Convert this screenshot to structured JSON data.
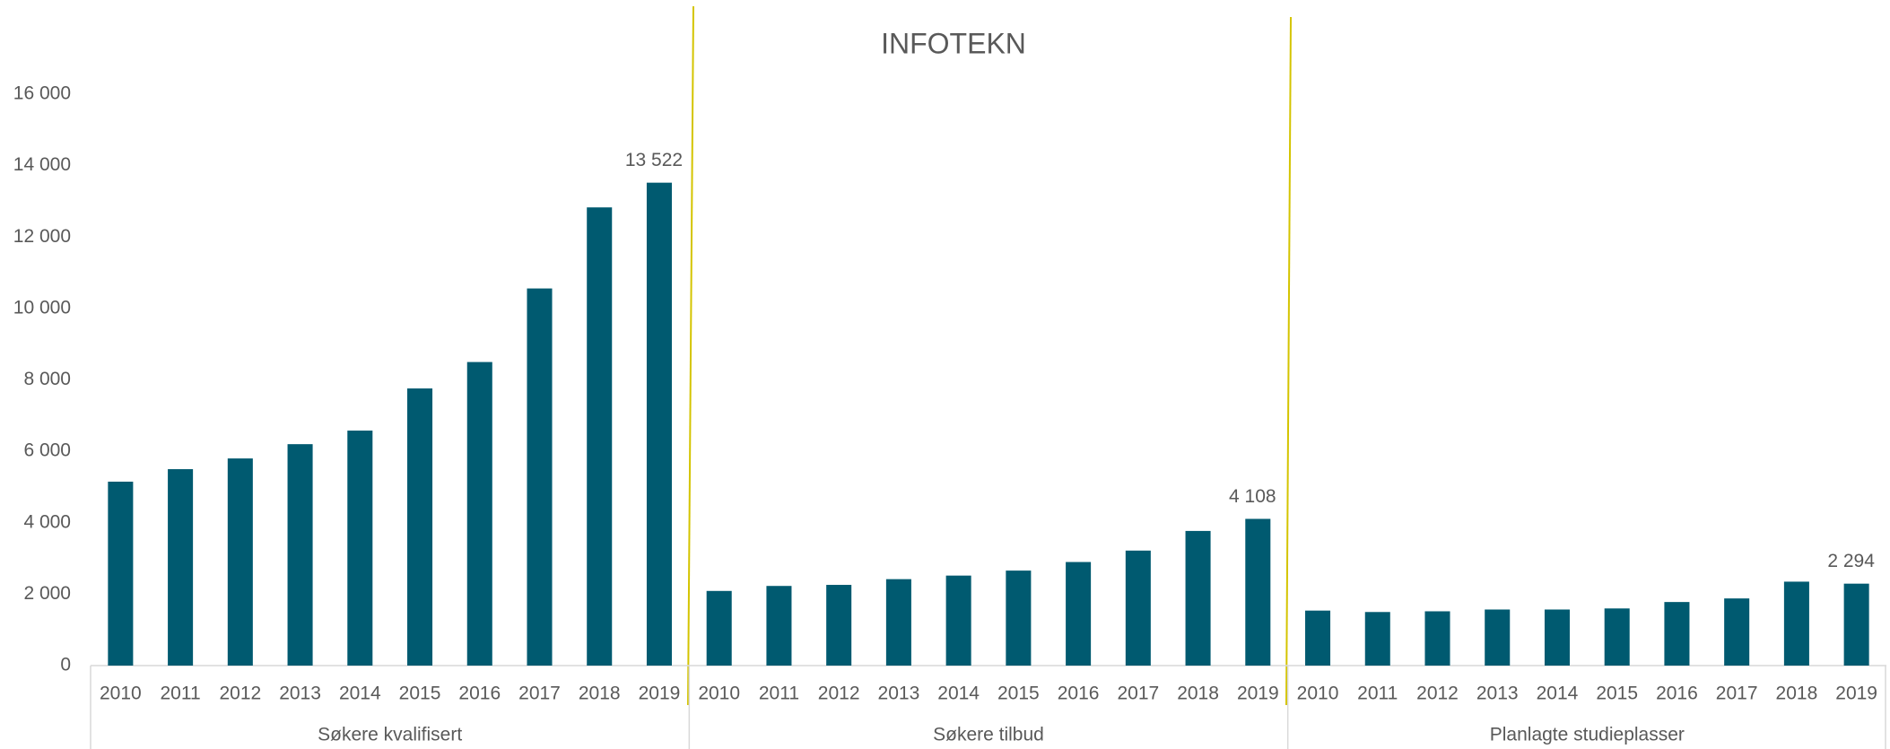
{
  "chart_data": {
    "type": "bar",
    "title": "INFOTEKN",
    "color": "#005a70",
    "ylim": [
      0,
      16000
    ],
    "yticks": [
      0,
      {
        "value": 2000,
        "label": "2 000"
      },
      {
        "value": 4000,
        "label": "4 000"
      },
      {
        "value": 6000,
        "label": "6 000"
      },
      {
        "value": 8000,
        "label": "8 000"
      },
      {
        "value": 10000,
        "label": "10 000"
      },
      {
        "value": 12000,
        "label": "12 000"
      },
      {
        "value": 14000,
        "label": "14 000"
      },
      {
        "value": 16000,
        "label": "16 000"
      }
    ],
    "groups": [
      {
        "name": "Søkere kvalifisert",
        "categories": [
          "2010",
          "2011",
          "2012",
          "2013",
          "2014",
          "2015",
          "2016",
          "2017",
          "2018",
          "2019"
        ],
        "values": [
          5150,
          5500,
          5800,
          6200,
          6580,
          7760,
          8500,
          10560,
          12830,
          13522
        ],
        "value_labels": [
          null,
          null,
          null,
          null,
          null,
          null,
          null,
          null,
          null,
          "13 522"
        ]
      },
      {
        "name": "Søkere tilbud",
        "categories": [
          "2010",
          "2011",
          "2012",
          "2013",
          "2014",
          "2015",
          "2016",
          "2017",
          "2018",
          "2019"
        ],
        "values": [
          2090,
          2230,
          2260,
          2420,
          2520,
          2660,
          2900,
          3220,
          3770,
          4108
        ],
        "value_labels": [
          null,
          null,
          null,
          null,
          null,
          null,
          null,
          null,
          null,
          "4 108"
        ]
      },
      {
        "name": "Planlagte studieplasser",
        "categories": [
          "2010",
          "2011",
          "2012",
          "2013",
          "2014",
          "2015",
          "2016",
          "2017",
          "2018",
          "2019"
        ],
        "values": [
          1540,
          1500,
          1520,
          1570,
          1570,
          1600,
          1780,
          1880,
          2350,
          2294
        ],
        "value_labels": [
          null,
          null,
          null,
          null,
          null,
          null,
          null,
          null,
          null,
          "2 294"
        ]
      }
    ]
  }
}
